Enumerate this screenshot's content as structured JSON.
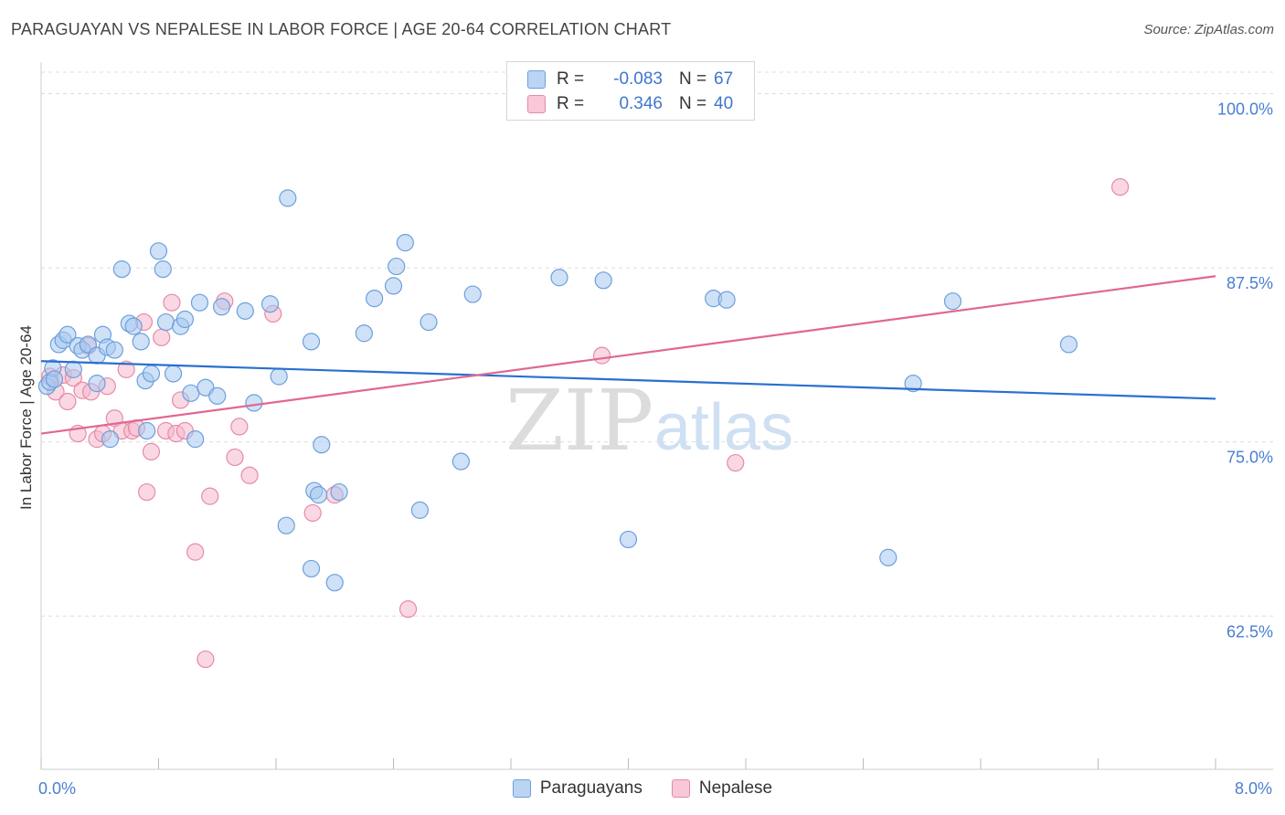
{
  "title": "PARAGUAYAN VS NEPALESE IN LABOR FORCE | AGE 20-64 CORRELATION CHART",
  "source": "Source: ZipAtlas.com",
  "watermark": {
    "zip": "ZIP",
    "atlas": "atlas"
  },
  "legend": {
    "rows": [
      {
        "r_label": "R =",
        "r_value": "-0.083",
        "n_label": "N =",
        "n_value": "67"
      },
      {
        "r_label": "R =",
        "r_value": "0.346",
        "n_label": "N =",
        "n_value": "40"
      }
    ]
  },
  "bottom_legend": {
    "series1": "Paraguayans",
    "series2": "Nepalese"
  },
  "colors": {
    "blue_fill": "#a8c8f0",
    "blue_stroke": "#6c9fdc",
    "blue_line": "#2a6fd0",
    "pink_fill": "#f5b8cc",
    "pink_stroke": "#e68aa8",
    "pink_line": "#e06890",
    "grid": "#dddddd",
    "axis_text": "#4a7fd0"
  },
  "chart_data": {
    "type": "scatter",
    "title": "PARAGUAYAN VS NEPALESE IN LABOR FORCE | AGE 20-64 CORRELATION CHART",
    "xlabel": "",
    "ylabel": "In Labor Force | Age 20-64",
    "xlim": [
      0,
      8
    ],
    "ylim": [
      51.5,
      102
    ],
    "x_tick_labels": [
      {
        "value": 0,
        "label": "0.0%"
      },
      {
        "value": 8,
        "label": "8.0%"
      }
    ],
    "y_ticks": [
      {
        "value": 62.5,
        "label": "62.5%"
      },
      {
        "value": 75.0,
        "label": "75.0%"
      },
      {
        "value": 87.5,
        "label": "87.5%"
      },
      {
        "value": 100.0,
        "label": "100.0%"
      }
    ],
    "series": [
      {
        "name": "Paraguayans",
        "r": -0.083,
        "n": 67,
        "trend": {
          "x": [
            0,
            8
          ],
          "y": [
            80.8,
            78.1
          ]
        },
        "points": [
          [
            0.04,
            79.0
          ],
          [
            0.06,
            79.3
          ],
          [
            0.08,
            80.3
          ],
          [
            0.09,
            79.5
          ],
          [
            0.12,
            82.0
          ],
          [
            0.15,
            82.3
          ],
          [
            0.18,
            82.7
          ],
          [
            0.22,
            80.2
          ],
          [
            0.25,
            81.9
          ],
          [
            0.28,
            81.6
          ],
          [
            0.32,
            82.0
          ],
          [
            0.38,
            81.2
          ],
          [
            0.42,
            82.7
          ],
          [
            0.45,
            81.8
          ],
          [
            0.5,
            81.6
          ],
          [
            0.38,
            79.2
          ],
          [
            0.55,
            87.4
          ],
          [
            0.6,
            83.5
          ],
          [
            0.63,
            83.3
          ],
          [
            0.68,
            82.2
          ],
          [
            0.71,
            79.4
          ],
          [
            0.75,
            79.9
          ],
          [
            0.8,
            88.7
          ],
          [
            0.83,
            87.4
          ],
          [
            0.85,
            83.6
          ],
          [
            0.9,
            79.9
          ],
          [
            0.95,
            83.3
          ],
          [
            0.98,
            83.8
          ],
          [
            1.02,
            78.5
          ],
          [
            1.05,
            75.2
          ],
          [
            1.08,
            85.0
          ],
          [
            1.12,
            78.9
          ],
          [
            1.2,
            78.3
          ],
          [
            1.23,
            84.7
          ],
          [
            1.39,
            84.4
          ],
          [
            1.45,
            77.8
          ],
          [
            1.56,
            84.9
          ],
          [
            1.62,
            79.7
          ],
          [
            1.67,
            69.0
          ],
          [
            1.68,
            92.5
          ],
          [
            1.84,
            82.2
          ],
          [
            1.84,
            65.9
          ],
          [
            1.86,
            71.5
          ],
          [
            1.89,
            71.2
          ],
          [
            1.91,
            74.8
          ],
          [
            2.0,
            64.9
          ],
          [
            2.03,
            71.4
          ],
          [
            2.2,
            82.8
          ],
          [
            2.27,
            85.3
          ],
          [
            2.4,
            86.2
          ],
          [
            2.42,
            87.6
          ],
          [
            2.48,
            89.3
          ],
          [
            2.58,
            70.1
          ],
          [
            2.64,
            83.6
          ],
          [
            2.86,
            73.6
          ],
          [
            2.94,
            85.6
          ],
          [
            3.53,
            86.8
          ],
          [
            3.83,
            86.6
          ],
          [
            4.0,
            68.0
          ],
          [
            4.58,
            85.3
          ],
          [
            4.67,
            85.2
          ],
          [
            5.77,
            66.7
          ],
          [
            5.94,
            79.2
          ],
          [
            6.21,
            85.1
          ],
          [
            7.0,
            82.0
          ],
          [
            0.72,
            75.8
          ],
          [
            0.47,
            75.2
          ]
        ]
      },
      {
        "name": "Nepalese",
        "r": 0.346,
        "n": 40,
        "trend": {
          "x": [
            0,
            8
          ],
          "y": [
            75.6,
            86.9
          ]
        },
        "points": [
          [
            0.06,
            79.7
          ],
          [
            0.1,
            78.6
          ],
          [
            0.15,
            79.8
          ],
          [
            0.18,
            77.9
          ],
          [
            0.22,
            79.6
          ],
          [
            0.28,
            78.7
          ],
          [
            0.32,
            81.9
          ],
          [
            0.34,
            78.6
          ],
          [
            0.38,
            75.2
          ],
          [
            0.42,
            75.6
          ],
          [
            0.45,
            79.0
          ],
          [
            0.5,
            76.7
          ],
          [
            0.55,
            75.8
          ],
          [
            0.58,
            80.2
          ],
          [
            0.62,
            75.8
          ],
          [
            0.7,
            83.6
          ],
          [
            0.72,
            71.4
          ],
          [
            0.75,
            74.3
          ],
          [
            0.82,
            82.5
          ],
          [
            0.85,
            75.8
          ],
          [
            0.89,
            85.0
          ],
          [
            0.92,
            75.6
          ],
          [
            0.95,
            78.0
          ],
          [
            0.98,
            75.8
          ],
          [
            1.05,
            67.1
          ],
          [
            1.12,
            59.4
          ],
          [
            1.15,
            71.1
          ],
          [
            1.25,
            85.1
          ],
          [
            1.32,
            73.9
          ],
          [
            1.35,
            76.1
          ],
          [
            1.42,
            72.6
          ],
          [
            1.58,
            84.2
          ],
          [
            1.85,
            69.9
          ],
          [
            2.0,
            71.2
          ],
          [
            2.5,
            63.0
          ],
          [
            3.82,
            81.2
          ],
          [
            4.73,
            73.5
          ],
          [
            7.35,
            93.3
          ],
          [
            0.25,
            75.6
          ],
          [
            0.65,
            76.0
          ]
        ]
      }
    ]
  }
}
